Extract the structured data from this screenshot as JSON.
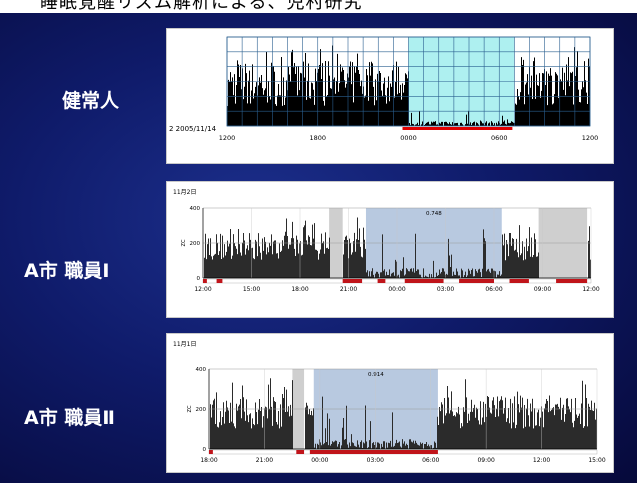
{
  "slide": {
    "title_fragment": "睡眠覚醒リズム解析による、児村研究"
  },
  "rows": [
    {
      "label": "健常人",
      "chart": {
        "date_label": "2 2005/11/14",
        "x_ticks": [
          "1200",
          "1800",
          "0000",
          "0600",
          "1200"
        ],
        "sleep_band": {
          "from": "00:00",
          "to": "06:00"
        },
        "background_color": "#aef0f0",
        "bar_color": "#000000",
        "sleep_marker_color": "#e00000"
      }
    },
    {
      "label": "A市  職員Ⅰ",
      "chart": {
        "date_label": "11月2日",
        "y_ticks": [
          "400",
          "200",
          "0"
        ],
        "y_axis_label": "ZC",
        "x_ticks": [
          "12:00",
          "15:00",
          "18:00",
          "21:00",
          "00:00",
          "03:00",
          "06:00",
          "09:00",
          "12:00"
        ],
        "band_value": "0.748",
        "band_color": "#b8c9e0",
        "gray_color": "#cfcfcf"
      }
    },
    {
      "label": "A市  職員Ⅱ",
      "chart": {
        "date_label": "11月1日",
        "y_ticks": [
          "400",
          "200",
          "0"
        ],
        "y_axis_label": "ZC",
        "x_ticks": [
          "18:00",
          "21:00",
          "00:00",
          "03:00",
          "06:00",
          "09:00",
          "12:00",
          "15:00"
        ],
        "band_value": "0.914",
        "band_color": "#b8c9e0",
        "gray_color": "#cfcfcf"
      }
    }
  ]
}
